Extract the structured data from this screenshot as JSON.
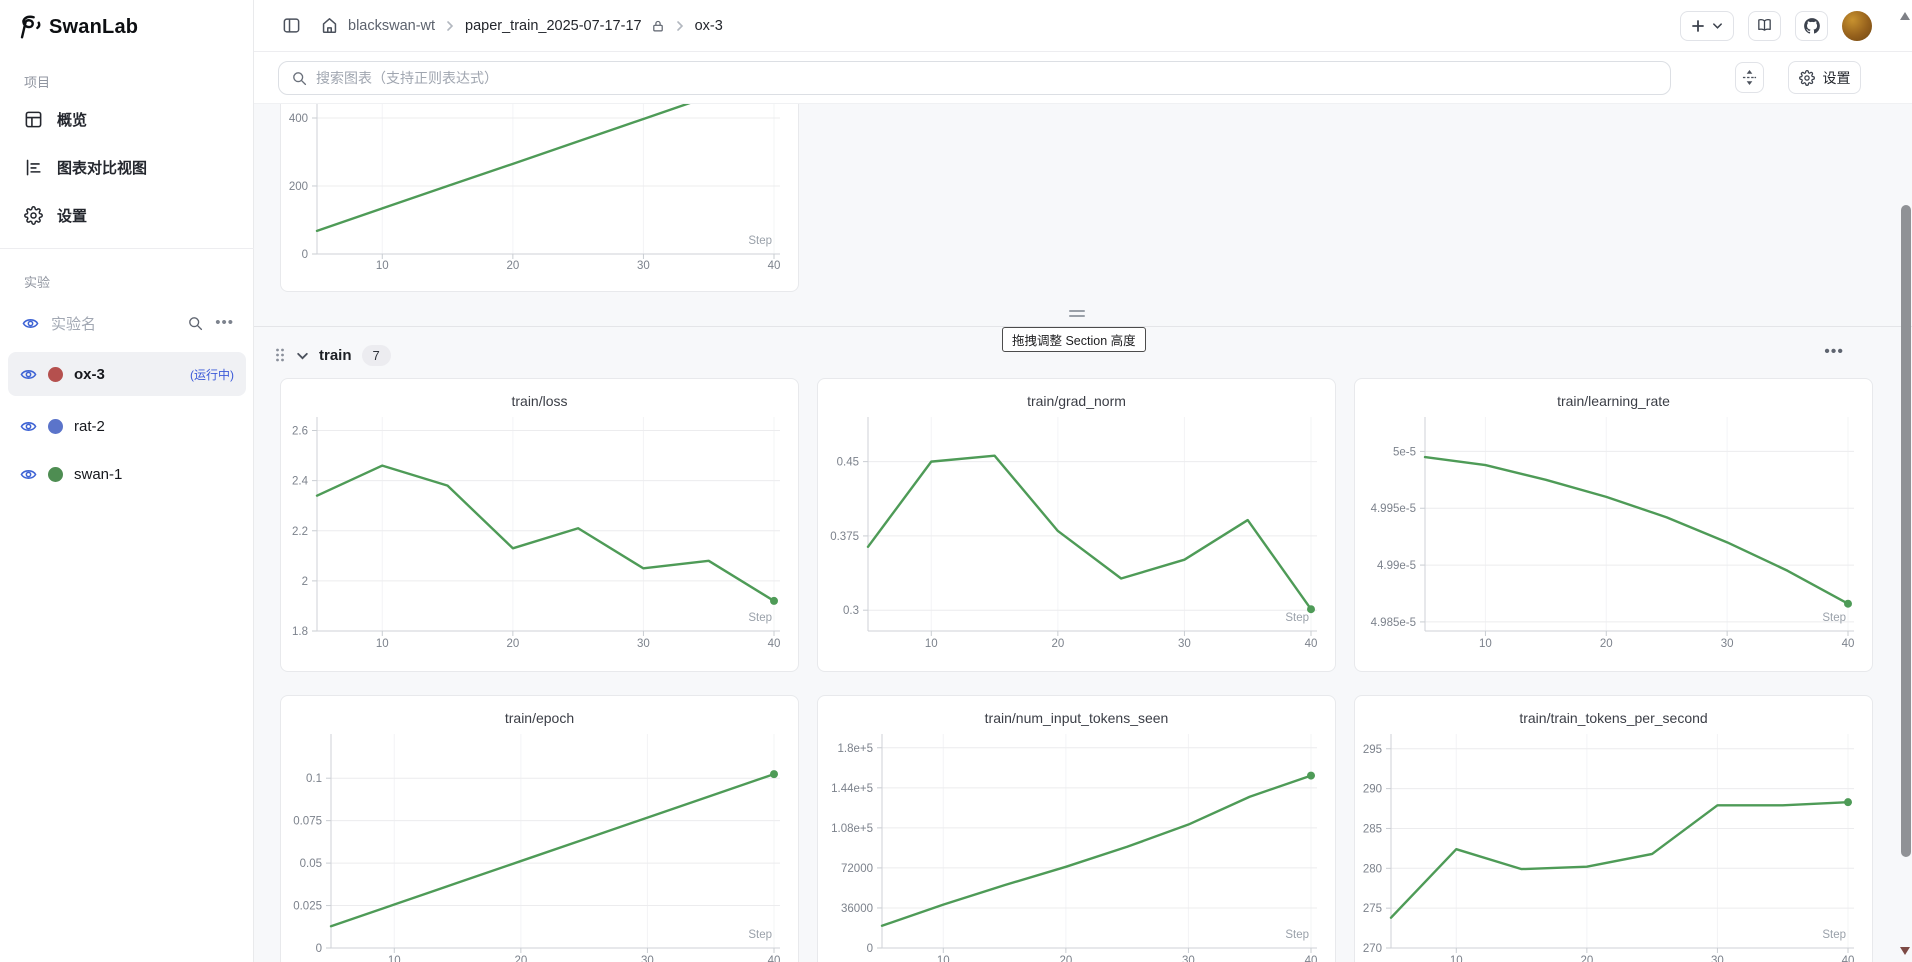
{
  "app_title": "SwanLab",
  "sidebar": {
    "project_section_label": "项目",
    "nav": [
      {
        "label": "概览"
      },
      {
        "label": "图表对比视图"
      },
      {
        "label": "设置"
      }
    ],
    "experiments_section_label": "实验",
    "experiment_filter_label": "实验名",
    "experiments": [
      {
        "name": "ox-3",
        "color": "#b5504e",
        "status": "(运行中)",
        "selected": true
      },
      {
        "name": "rat-2",
        "color": "#5b74ca",
        "status": "",
        "selected": false
      },
      {
        "name": "swan-1",
        "color": "#4e8d52",
        "status": "",
        "selected": false
      }
    ]
  },
  "header": {
    "breadcrumb": {
      "workspace": "blackswan-wt",
      "project": "paper_train_2025-07-17-17",
      "run": "ox-3"
    }
  },
  "toolbar": {
    "search_placeholder": "搜索图表（支持正则表达式）",
    "settings_label": "设置"
  },
  "section_divider": {
    "tooltip": "拖拽调整 Section 高度"
  },
  "train_section": {
    "title": "train",
    "count": "7"
  },
  "colors": {
    "line_green": "#4e9b57",
    "running_blue": "#3c5ad8",
    "eye_blue": "#3e63d4"
  },
  "chart_data": [
    {
      "type": "line",
      "title": "",
      "clipped_top": true,
      "xlabel": "Step",
      "x": [
        5,
        10,
        15,
        20,
        25,
        30,
        35,
        40
      ],
      "values": [
        68,
        134,
        200,
        265,
        331,
        397,
        463,
        529
      ],
      "yticks": [
        {
          "value": 0,
          "label": "0"
        },
        {
          "value": 200,
          "label": "200"
        },
        {
          "value": 400,
          "label": "400"
        }
      ],
      "xticks": [
        10,
        20,
        30,
        40
      ],
      "xlim": [
        5,
        40
      ],
      "ylim": [
        0,
        441
      ],
      "line_color": "#4e9b57",
      "end_dot": true
    },
    {
      "type": "line",
      "title": "train/loss",
      "xlabel": "Step",
      "x": [
        5,
        10,
        15,
        20,
        25,
        30,
        35,
        40
      ],
      "values": [
        2.34,
        2.46,
        2.38,
        2.13,
        2.21,
        2.05,
        2.08,
        1.92
      ],
      "yticks": [
        {
          "value": 1.8,
          "label": "1.8"
        },
        {
          "value": 2,
          "label": "2"
        },
        {
          "value": 2.2,
          "label": "2.2"
        },
        {
          "value": 2.4,
          "label": "2.4"
        },
        {
          "value": 2.6,
          "label": "2.6"
        }
      ],
      "xticks": [
        10,
        20,
        30,
        40
      ],
      "xlim": [
        5,
        40
      ],
      "ylim": [
        1.8,
        2.63
      ],
      "line_color": "#4e9b57",
      "end_dot": true
    },
    {
      "type": "line",
      "title": "train/grad_norm",
      "xlabel": "Step",
      "x": [
        5,
        10,
        15,
        20,
        25,
        30,
        35,
        40
      ],
      "values": [
        0.364,
        0.45,
        0.456,
        0.38,
        0.332,
        0.351,
        0.391,
        0.301
      ],
      "yticks": [
        {
          "value": 0.3,
          "label": "0.3"
        },
        {
          "value": 0.375,
          "label": "0.375"
        },
        {
          "value": 0.45,
          "label": "0.45"
        }
      ],
      "xticks": [
        10,
        20,
        30,
        40
      ],
      "xlim": [
        5,
        40
      ],
      "ylim": [
        0.279,
        0.489
      ],
      "line_color": "#4e9b57",
      "end_dot": true
    },
    {
      "type": "line",
      "title": "train/learning_rate",
      "xlabel": "Step",
      "x": [
        5,
        10,
        15,
        20,
        25,
        30,
        35,
        40
      ],
      "values": [
        4.9995e-05,
        4.9988e-05,
        4.9975e-05,
        4.996e-05,
        4.9942e-05,
        4.992e-05,
        4.9895e-05,
        4.9866e-05
      ],
      "yticks": [
        {
          "value": 4.985e-05,
          "label": "4.985e-5"
        },
        {
          "value": 4.99e-05,
          "label": "4.99e-5"
        },
        {
          "value": 4.995e-05,
          "label": "4.995e-5"
        },
        {
          "value": 5e-05,
          "label": "5e-5"
        }
      ],
      "xticks": [
        10,
        20,
        30,
        40
      ],
      "xlim": [
        5,
        40
      ],
      "ylim": [
        4.9842e-05,
        5.0025e-05
      ],
      "line_color": "#4e9b57",
      "end_dot": true
    },
    {
      "type": "line",
      "title": "train/epoch",
      "xlabel": "Step",
      "x": [
        5,
        10,
        15,
        20,
        25,
        30,
        35,
        40
      ],
      "values": [
        0.0128,
        0.0256,
        0.0384,
        0.0512,
        0.064,
        0.0768,
        0.0896,
        0.1024
      ],
      "yticks": [
        {
          "value": 0,
          "label": "0"
        },
        {
          "value": 0.025,
          "label": "0.025"
        },
        {
          "value": 0.05,
          "label": "0.05"
        },
        {
          "value": 0.075,
          "label": "0.075"
        },
        {
          "value": 0.1,
          "label": "0.1"
        }
      ],
      "xticks": [
        10,
        20,
        30,
        40
      ],
      "xlim": [
        5,
        40
      ],
      "ylim": [
        0,
        0.1225
      ],
      "line_color": "#4e9b57",
      "end_dot": true
    },
    {
      "type": "line",
      "title": "train/num_input_tokens_seen",
      "xlabel": "Step",
      "x": [
        5,
        10,
        15,
        20,
        25,
        30,
        35,
        40
      ],
      "values": [
        20000,
        39000,
        56500,
        73000,
        91000,
        111000,
        136000,
        155000
      ],
      "yticks": [
        {
          "value": 0,
          "label": "0"
        },
        {
          "value": 36000,
          "label": "36000"
        },
        {
          "value": 72000,
          "label": "72000"
        },
        {
          "value": 108000,
          "label": "1.08e+5"
        },
        {
          "value": 144000,
          "label": "1.44e+5"
        },
        {
          "value": 180000,
          "label": "1.8e+5"
        }
      ],
      "xticks": [
        10,
        20,
        30,
        40
      ],
      "xlim": [
        5,
        40
      ],
      "ylim": [
        0,
        187000
      ],
      "line_color": "#4e9b57",
      "end_dot": true
    },
    {
      "type": "line",
      "title": "train/train_tokens_per_second",
      "xlabel": "Step",
      "x": [
        5,
        10,
        15,
        20,
        25,
        30,
        35,
        40
      ],
      "values": [
        273.8,
        282.4,
        279.9,
        280.2,
        281.8,
        287.9,
        287.9,
        288.3
      ],
      "yticks": [
        {
          "value": 270,
          "label": "270"
        },
        {
          "value": 275,
          "label": "275"
        },
        {
          "value": 280,
          "label": "280"
        },
        {
          "value": 285,
          "label": "285"
        },
        {
          "value": 290,
          "label": "290"
        },
        {
          "value": 295,
          "label": "295"
        }
      ],
      "xticks": [
        10,
        20,
        30,
        40
      ],
      "xlim": [
        5,
        40
      ],
      "ylim": [
        270,
        296.1
      ],
      "line_color": "#4e9b57",
      "end_dot": true
    }
  ]
}
